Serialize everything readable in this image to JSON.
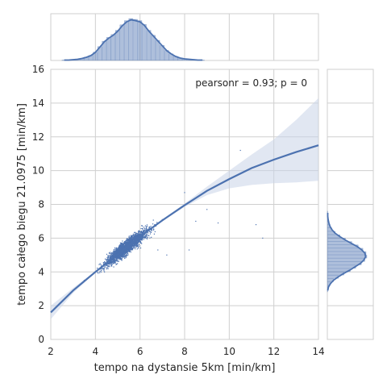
{
  "chart_data": {
    "type": "scatter",
    "title": "",
    "xlabel": "tempo na dystansie 5km [min/km]",
    "ylabel": "tempo całego biegu 21.0975 [min/km]",
    "xlim": [
      2,
      14
    ],
    "ylim": [
      0,
      16
    ],
    "xticks": [
      "2",
      "4",
      "6",
      "8",
      "10",
      "12",
      "14"
    ],
    "yticks": [
      "0",
      "2",
      "4",
      "6",
      "8",
      "10",
      "12",
      "14",
      "16"
    ],
    "annotation": "pearsonr = 0.93; p = 0",
    "grid": true,
    "colors": {
      "main": "#4c72b0",
      "band": "#c8d3e8",
      "grid": "#cfcfcf",
      "plot_bg": "#ffffff"
    },
    "regression": {
      "x": [
        2.0,
        3.0,
        4.0,
        5.0,
        6.0,
        7.0,
        8.0,
        9.0,
        10.0,
        11.0,
        12.0,
        13.0,
        14.0
      ],
      "y": [
        1.6,
        2.9,
        4.0,
        5.05,
        6.1,
        7.05,
        7.95,
        8.8,
        9.5,
        10.15,
        10.65,
        11.1,
        11.5
      ],
      "ci_lower": [
        1.2,
        2.75,
        3.95,
        5.0,
        6.05,
        7.0,
        7.85,
        8.55,
        8.95,
        9.15,
        9.25,
        9.3,
        9.4
      ],
      "ci_upper": [
        2.0,
        3.05,
        4.05,
        5.1,
        6.15,
        7.1,
        8.05,
        9.05,
        10.0,
        10.95,
        11.85,
        13.0,
        14.3
      ]
    },
    "scatter_sample": [
      {
        "x": 3.0,
        "y": 2.9
      },
      {
        "x": 3.5,
        "y": 3.5
      },
      {
        "x": 4.0,
        "y": 4.0
      },
      {
        "x": 4.5,
        "y": 4.5
      },
      {
        "x": 5.0,
        "y": 5.0
      },
      {
        "x": 5.5,
        "y": 5.6
      },
      {
        "x": 6.0,
        "y": 6.1
      },
      {
        "x": 6.5,
        "y": 6.5
      },
      {
        "x": 7.0,
        "y": 7.1
      },
      {
        "x": 7.5,
        "y": 7.5
      },
      {
        "x": 8.0,
        "y": 8.7
      },
      {
        "x": 8.5,
        "y": 7.0
      },
      {
        "x": 9.0,
        "y": 7.7
      },
      {
        "x": 10.5,
        "y": 11.2
      },
      {
        "x": 11.2,
        "y": 6.8
      },
      {
        "x": 11.5,
        "y": 6.0
      },
      {
        "x": 8.2,
        "y": 5.3
      },
      {
        "x": 9.5,
        "y": 6.9
      },
      {
        "x": 6.8,
        "y": 5.3
      },
      {
        "x": 7.2,
        "y": 5.0
      }
    ],
    "x_marginal": {
      "bin_edges_start": 2.5,
      "bin_width": 0.2,
      "counts": [
        0.01,
        0.01,
        0.02,
        0.03,
        0.05,
        0.08,
        0.12,
        0.2,
        0.33,
        0.46,
        0.55,
        0.62,
        0.72,
        0.85,
        0.95,
        1.0,
        0.98,
        0.95,
        0.86,
        0.72,
        0.6,
        0.48,
        0.36,
        0.24,
        0.16,
        0.1,
        0.06,
        0.04,
        0.03,
        0.02,
        0.01,
        0.01
      ]
    },
    "y_marginal": {
      "bin_edges_start": 2.8,
      "bin_width": 0.2,
      "counts": [
        0.01,
        0.03,
        0.08,
        0.16,
        0.28,
        0.42,
        0.58,
        0.72,
        0.86,
        0.95,
        1.0,
        0.98,
        0.9,
        0.78,
        0.62,
        0.46,
        0.32,
        0.2,
        0.12,
        0.07,
        0.04,
        0.02,
        0.01,
        0.01
      ]
    }
  }
}
